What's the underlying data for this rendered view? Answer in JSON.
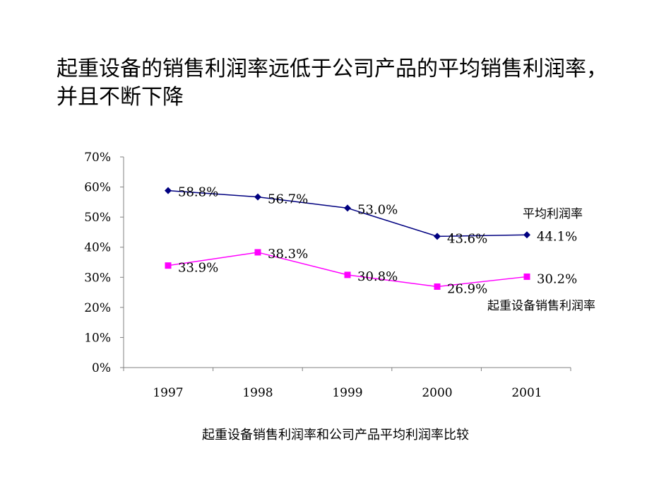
{
  "headline": {
    "line1": "起重设备的销售利润率远低于公司产品的平均销售利润率，",
    "line2": "并且不断下降"
  },
  "caption": "起重设备销售利润率和公司产品平均利润率比较",
  "colors": {
    "avg_series": "#000080",
    "crane_series": "#FF00FF",
    "axis": "#808080"
  },
  "chart_data": {
    "type": "line",
    "title": "",
    "xlabel": "",
    "ylabel": "",
    "categories": [
      "1997",
      "1998",
      "1999",
      "2000",
      "2001"
    ],
    "ylim": [
      0,
      70
    ],
    "yticks": [
      "0%",
      "10%",
      "20%",
      "30%",
      "40%",
      "50%",
      "60%",
      "70%"
    ],
    "grid": false,
    "series": [
      {
        "name": "平均利润率",
        "values": [
          58.8,
          56.7,
          53.0,
          43.6,
          44.1
        ],
        "labels": [
          "58.8%",
          "56.7%",
          "53.0%",
          "43.6%",
          "44.1%"
        ],
        "marker": "diamond",
        "color": "#000080"
      },
      {
        "name": "起重设备销售利润率",
        "values": [
          33.9,
          38.3,
          30.8,
          26.9,
          30.2
        ],
        "labels": [
          "33.9%",
          "38.3%",
          "30.8%",
          "26.9%",
          "30.2%"
        ],
        "marker": "square",
        "color": "#FF00FF"
      }
    ]
  }
}
